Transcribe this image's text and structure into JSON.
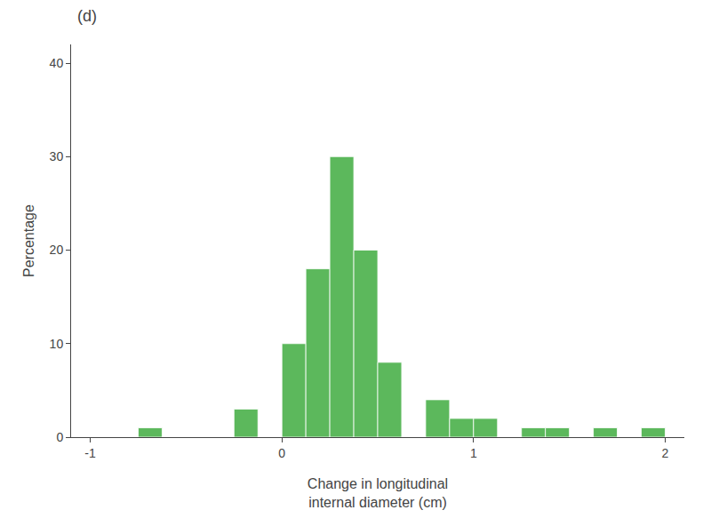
{
  "chart_data": {
    "type": "histogram",
    "title": "(d)",
    "bins": [
      -1.0,
      -0.875,
      -0.75,
      -0.625,
      -0.5,
      -0.375,
      -0.25,
      -0.125,
      0.0,
      0.125,
      0.25,
      0.375,
      0.5,
      0.625,
      0.75,
      0.875,
      1.0,
      1.125,
      1.25,
      1.375,
      1.5,
      1.625,
      1.75,
      1.875,
      2.0
    ],
    "values": [
      0,
      0,
      1,
      0,
      0,
      0,
      3,
      0,
      10,
      18,
      30,
      20,
      8,
      0,
      4,
      2,
      2,
      0,
      1,
      1,
      0,
      1,
      0,
      1
    ],
    "color": "#5cb85c",
    "xlabel": "Change in longitudinal\ninternal diameter (cm)",
    "ylabel": "Percentage",
    "xlim": [
      -1.1,
      2.1
    ],
    "xticks": [
      -1,
      0,
      1,
      2
    ],
    "ylim": [
      0,
      42
    ],
    "yticks": [
      0,
      10,
      20,
      30,
      40
    ],
    "grid": false
  }
}
